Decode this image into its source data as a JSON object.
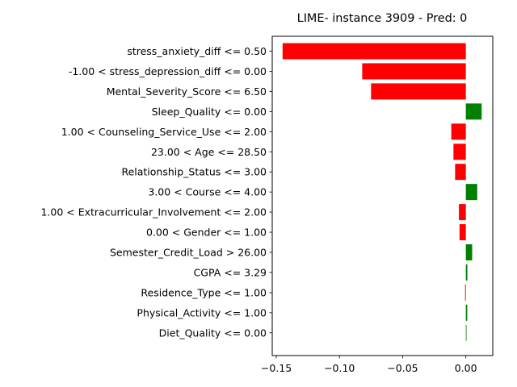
{
  "chart_data": {
    "type": "bar",
    "orientation": "horizontal",
    "title": "LIME- instance 3909 - Pred: 0",
    "xlabel": "",
    "ylabel": "",
    "xlim": [
      -0.1532,
      0.0213
    ],
    "xticks": [
      -0.15,
      -0.1,
      -0.05,
      0.0
    ],
    "xtick_labels": [
      "−0.15",
      "−0.10",
      "−0.05",
      "0.00"
    ],
    "colors": {
      "positive": "#008000",
      "negative": "#ff0000"
    },
    "categories": [
      "stress_anxiety_diff <= 0.50",
      "-1.00 < stress_depression_diff <= 0.00",
      "Mental_Severity_Score <= 6.50",
      "Sleep_Quality <= 0.00",
      "1.00 < Counseling_Service_Use <= 2.00",
      "23.00 < Age <= 28.50",
      "Relationship_Status <= 3.00",
      "3.00 < Course <= 4.00",
      "1.00 < Extracurricular_Involvement <= 2.00",
      "0.00 < Gender <= 1.00",
      "Semester_Credit_Load > 26.00",
      "CGPA <= 3.29",
      "Residence_Type <= 1.00",
      "Physical_Activity <= 1.00",
      "Diet_Quality <= 0.00"
    ],
    "values": [
      -0.145,
      -0.082,
      -0.075,
      0.0125,
      -0.0115,
      -0.0098,
      -0.0085,
      0.009,
      -0.0055,
      -0.005,
      0.005,
      0.0012,
      -0.0006,
      0.0011,
      0.0004
    ]
  }
}
